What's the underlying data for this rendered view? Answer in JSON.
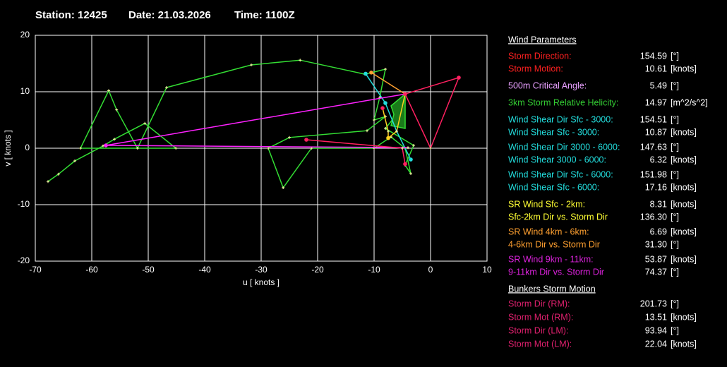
{
  "header": {
    "station": "Station: 12425",
    "date": "Date: 21.03.2026",
    "time": "Time: 1100Z"
  },
  "chart_data": {
    "type": "hodograph",
    "xlabel": "u  [ knots ]",
    "ylabel": "v  [ knots ]",
    "xlim": [
      -70,
      10
    ],
    "ylim": [
      -20,
      20
    ],
    "xticks": [
      -70,
      -60,
      -50,
      -40,
      -30,
      -20,
      -10,
      0,
      10
    ],
    "yticks": [
      -20,
      -10,
      0,
      10,
      20
    ],
    "grid": true,
    "series": [
      {
        "color": "#33dd33",
        "x": [
          -67.75,
          -65.9,
          -63,
          -58,
          -56,
          -50.6,
          -45.1,
          -62,
          -57,
          -55.6,
          -51.9,
          -46.75,
          -31.75,
          -23.1,
          -11.6,
          -8,
          -9,
          -10,
          -8,
          -11.25,
          -25,
          -28.75,
          -26.1,
          -21.1,
          -10,
          -7,
          -4.5,
          -3.5,
          -4.5,
          -3,
          -8,
          -6
        ],
        "values": [
          -5.9,
          -4.6,
          -2.25,
          0.4,
          1.6,
          4.4,
          0,
          0,
          10.2,
          6.8,
          0,
          10.75,
          14.75,
          15.6,
          13.1,
          14,
          9,
          5,
          5.6,
          3.1,
          1.9,
          0,
          -7,
          0,
          0,
          2,
          0,
          -4.5,
          -3,
          0.5,
          3.5,
          6
        ]
      },
      {
        "color": "#33dd33",
        "fill": "#1a7a1a",
        "x": [
          -7,
          -4.5,
          -4.5,
          -7,
          -6.5
        ],
        "values": [
          7.5,
          9.6,
          3.5,
          4,
          6
        ]
      },
      {
        "color": "#22dddd",
        "x": [
          -11.5,
          -8,
          -6,
          -3.5
        ],
        "values": [
          13.2,
          8,
          3,
          -2
        ]
      },
      {
        "color": "#ff22ff",
        "x": [
          -57.5,
          -4.5
        ],
        "values": [
          0.5,
          9.6
        ]
      },
      {
        "color": "#ff22ff",
        "x": [
          -57.5,
          -4
        ],
        "values": [
          0.5,
          0.1
        ]
      },
      {
        "color": "#ff2060",
        "x": [
          -22,
          -5,
          -4.5
        ],
        "values": [
          1.5,
          0,
          -2.8
        ]
      },
      {
        "color": "#ff2060",
        "x": [
          0,
          5,
          -4.5,
          0
        ],
        "values": [
          0,
          12.5,
          9.6,
          0
        ]
      },
      {
        "color": "#ffd020",
        "x": [
          -8.5,
          -7.5,
          -7.5,
          -6,
          -4.5
        ],
        "values": [
          7.1,
          3,
          1.8,
          3,
          9.6
        ]
      },
      {
        "color": "#ffa030",
        "x": [
          -10.5,
          -4.5
        ],
        "values": [
          13.4,
          9.6
        ]
      },
      {
        "color": "#ff2060",
        "dots": true,
        "x": [
          -4.5,
          5,
          -22,
          -8.5,
          -4.5
        ],
        "values": [
          9.6,
          12.5,
          1.5,
          7.1,
          -2.8
        ]
      },
      {
        "color": "#22dddd",
        "dots": true,
        "x": [
          -11.5,
          -3.5,
          -8
        ],
        "values": [
          13.2,
          -2,
          8
        ]
      },
      {
        "color": "#ffd020",
        "dots": true,
        "x": [
          -7.5
        ],
        "values": [
          1.8
        ]
      },
      {
        "color": "#ffa030",
        "dots": true,
        "x": [
          -10.5
        ],
        "values": [
          13.4
        ]
      },
      {
        "color": "#ff22ff",
        "dots": true,
        "x": [
          -57.5
        ],
        "values": [
          0.5
        ]
      }
    ]
  },
  "panel": {
    "wind_title": "Wind Parameters",
    "bunkers_title": "Bunkers Storm Motion",
    "wind": [
      {
        "label": "Storm Direction:",
        "value": "154.59",
        "unit": "[°]",
        "color": "#ff2020"
      },
      {
        "label": "Storm Motion:",
        "value": "10.61",
        "unit": "[knots]",
        "color": "#ff2020"
      },
      {
        "label": "500m Critical Angle:",
        "value": "5.49",
        "unit": "[°]",
        "color": "#e8a0ff"
      },
      {
        "label": "3km Storm Relative Helicity:",
        "value": "14.97",
        "unit": "[m^2/s^2]",
        "color": "#33cc33"
      },
      {
        "label": "Wind Shear Dir Sfc - 3000:",
        "value": "154.51",
        "unit": "[°]",
        "color": "#22dddd"
      },
      {
        "label": "Wind Shear Sfc - 3000:",
        "value": "10.87",
        "unit": "[knots]",
        "color": "#22dddd"
      },
      {
        "label": "Wind Shear Dir 3000 - 6000:",
        "value": "147.63",
        "unit": "[°]",
        "color": "#22dddd"
      },
      {
        "label": "Wind Shear 3000 - 6000:",
        "value": "6.32",
        "unit": "[knots]",
        "color": "#22dddd"
      },
      {
        "label": "Wind Shear Dir Sfc - 6000:",
        "value": "151.98",
        "unit": "[°]",
        "color": "#22dddd"
      },
      {
        "label": "Wind Shear Sfc - 6000:",
        "value": "17.16",
        "unit": "[knots]",
        "color": "#22dddd"
      },
      {
        "label": "SR Wind Sfc - 2km:",
        "value": "8.31",
        "unit": "[knots]",
        "color": "#ffff33"
      },
      {
        "label": "Sfc-2km Dir vs. Storm Dir",
        "value": "136.30",
        "unit": "[°]",
        "color": "#ffff33"
      },
      {
        "label": "SR Wind 4km - 6km:",
        "value": "6.69",
        "unit": "[knots]",
        "color": "#ffa030"
      },
      {
        "label": "4-6km Dir vs. Storm Dir",
        "value": "31.30",
        "unit": "[°]",
        "color": "#ffa030"
      },
      {
        "label": "SR Wind 9km - 11km:",
        "value": "53.87",
        "unit": "[knots]",
        "color": "#dd22dd"
      },
      {
        "label": "9-11km Dir vs. Storm Dir",
        "value": "74.37",
        "unit": "[°]",
        "color": "#dd22dd"
      }
    ],
    "bunkers": [
      {
        "label": "Storm Dir (RM):",
        "value": "201.73",
        "unit": "[°]",
        "color": "#e0206e"
      },
      {
        "label": "Storm Mot (RM):",
        "value": "13.51",
        "unit": "[knots]",
        "color": "#e0206e"
      },
      {
        "label": "Storm Dir (LM):",
        "value": "93.94",
        "unit": "[°]",
        "color": "#e0206e"
      },
      {
        "label": "Storm Mot (LM):",
        "value": "22.04",
        "unit": "[knots]",
        "color": "#e0206e"
      }
    ]
  }
}
